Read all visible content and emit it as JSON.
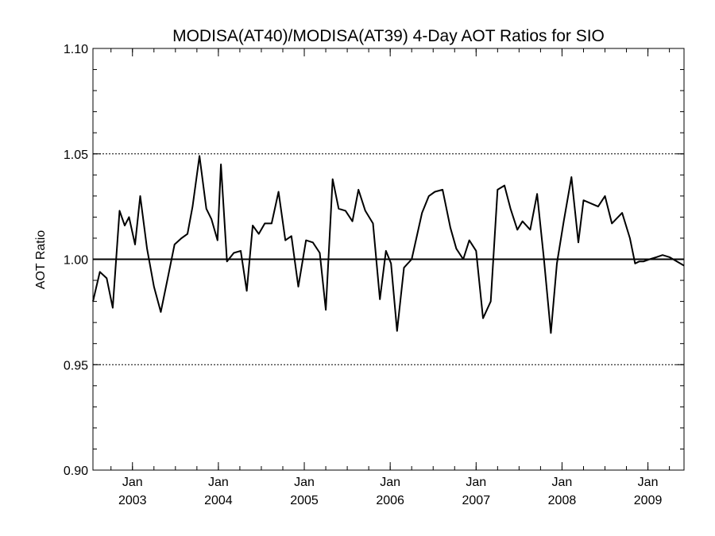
{
  "chart_data": {
    "type": "line",
    "title": "MODISA(AT40)/MODISA(AT39) 4-Day AOT Ratios for SIO",
    "xlabel": "",
    "ylabel": "AOT Ratio",
    "ylim": [
      0.9,
      1.1
    ],
    "yticks": [
      {
        "value": 0.9,
        "label": "0.90"
      },
      {
        "value": 0.95,
        "label": "0.95"
      },
      {
        "value": 1.0,
        "label": "1.00"
      },
      {
        "value": 1.05,
        "label": "1.05"
      },
      {
        "value": 1.1,
        "label": "1.10"
      }
    ],
    "y_minor_step": 0.01,
    "dotted_gridlines": [
      0.95,
      1.05
    ],
    "reference_line": 1.0,
    "xlim": [
      2002.54,
      2009.42
    ],
    "xticks": [
      {
        "value": 2003.0,
        "month": "Jan",
        "year": "2003"
      },
      {
        "value": 2004.0,
        "month": "Jan",
        "year": "2004"
      },
      {
        "value": 2005.0,
        "month": "Jan",
        "year": "2005"
      },
      {
        "value": 2006.0,
        "month": "Jan",
        "year": "2006"
      },
      {
        "value": 2007.0,
        "month": "Jan",
        "year": "2007"
      },
      {
        "value": 2008.0,
        "month": "Jan",
        "year": "2008"
      },
      {
        "value": 2009.0,
        "month": "Jan",
        "year": "2009"
      }
    ],
    "x_minor_step": 0.25,
    "series": [
      {
        "color": "#000000",
        "x": [
          2002.54,
          2002.62,
          2002.7,
          2002.77,
          2002.85,
          2002.91,
          2002.96,
          2003.03,
          2003.09,
          2003.17,
          2003.25,
          2003.33,
          2003.41,
          2003.49,
          2003.57,
          2003.64,
          2003.7,
          2003.78,
          2003.86,
          2003.92,
          2003.99,
          2004.03,
          2004.1,
          2004.18,
          2004.26,
          2004.33,
          2004.4,
          2004.47,
          2004.54,
          2004.62,
          2004.7,
          2004.78,
          2004.85,
          2004.93,
          2005.02,
          2005.1,
          2005.18,
          2005.25,
          2005.33,
          2005.4,
          2005.48,
          2005.56,
          2005.63,
          2005.71,
          2005.8,
          2005.88,
          2005.95,
          2006.01,
          2006.08,
          2006.16,
          2006.25,
          2006.37,
          2006.45,
          2006.52,
          2006.61,
          2006.7,
          2006.77,
          2006.85,
          2006.92,
          2007.0,
          2007.08,
          2007.17,
          2007.25,
          2007.33,
          2007.4,
          2007.48,
          2007.54,
          2007.63,
          2007.71,
          2007.79,
          2007.87,
          2007.94,
          2008.02,
          2008.11,
          2008.19,
          2008.25,
          2008.42,
          2008.5,
          2008.58,
          2008.7,
          2008.79,
          2008.85,
          2008.9,
          2008.95,
          2009.02,
          2009.1,
          2009.17,
          2009.25,
          2009.42
        ],
        "y": [
          0.98,
          0.994,
          0.991,
          0.977,
          1.023,
          1.016,
          1.02,
          1.007,
          1.03,
          1.005,
          0.987,
          0.975,
          0.991,
          1.007,
          1.01,
          1.012,
          1.025,
          1.049,
          1.024,
          1.019,
          1.009,
          1.045,
          0.999,
          1.003,
          1.004,
          0.985,
          1.016,
          1.012,
          1.017,
          1.017,
          1.032,
          1.009,
          1.011,
          0.987,
          1.009,
          1.008,
          1.003,
          0.976,
          1.038,
          1.024,
          1.023,
          1.018,
          1.033,
          1.023,
          1.017,
          0.981,
          1.004,
          0.998,
          0.966,
          0.996,
          1.0,
          1.022,
          1.03,
          1.032,
          1.033,
          1.015,
          1.005,
          1.0,
          1.009,
          1.004,
          0.972,
          0.98,
          1.033,
          1.035,
          1.024,
          1.014,
          1.018,
          1.014,
          1.031,
          1.0,
          0.965,
          0.998,
          1.018,
          1.039,
          1.008,
          1.028,
          1.025,
          1.03,
          1.017,
          1.022,
          1.01,
          0.998,
          0.999,
          0.999,
          1.0,
          1.001,
          1.002,
          1.001,
          0.997
        ]
      }
    ]
  }
}
